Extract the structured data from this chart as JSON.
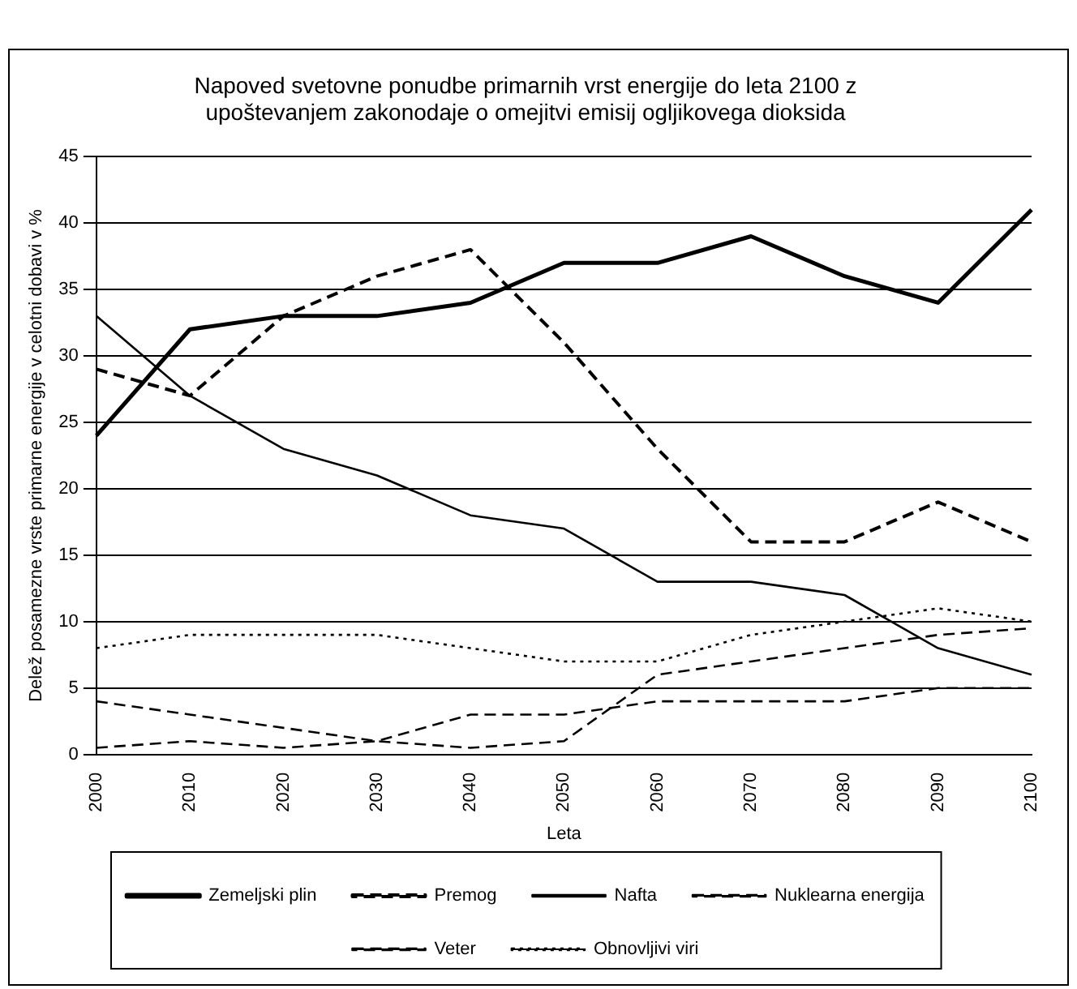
{
  "chart_data": {
    "type": "line",
    "title": "Napoved svetovne ponudbe primarnih vrst energije do leta 2100 z upoštevanjem zakonodaje o omejitvi emisij ogljikovega dioksida",
    "xlabel": "Leta",
    "ylabel": "Delež posamezne vrste primarne energije v celotni dobavi v %",
    "categories": [
      "2000",
      "2010",
      "2020",
      "2030",
      "2040",
      "2050",
      "2060",
      "2070",
      "2080",
      "2090",
      "2100"
    ],
    "series": [
      {
        "name": "Zemeljski plin",
        "color": "#000000",
        "line_style": "solid",
        "values": [
          24,
          32,
          33,
          33,
          34,
          37,
          37,
          39,
          36,
          34,
          41
        ]
      },
      {
        "name": "Premog",
        "color": "#000000",
        "line_style": "dashed",
        "values": [
          29,
          27,
          33,
          36,
          38,
          31,
          23,
          16,
          16,
          19,
          16
        ]
      },
      {
        "name": "Nafta",
        "color": "#000000",
        "line_style": "solid",
        "values": [
          33,
          27,
          23,
          21,
          18,
          17,
          13,
          13,
          12,
          8,
          6
        ]
      },
      {
        "name": "Nuklearna energija",
        "color": "#000000",
        "line_style": "dashed",
        "values": [
          4,
          3,
          2,
          1,
          0.5,
          1,
          6,
          7,
          8,
          9,
          9.5
        ]
      },
      {
        "name": "Veter",
        "color": "#000000",
        "line_style": "dashed",
        "values": [
          0.5,
          1,
          0.5,
          1,
          3,
          3,
          4,
          4,
          4,
          5,
          5
        ]
      },
      {
        "name": "Obnovljivi viri",
        "color": "#000000",
        "line_style": "dotted",
        "values": [
          8,
          9,
          9,
          9,
          8,
          7,
          7,
          9,
          10,
          11,
          10
        ]
      }
    ],
    "ylim": [
      0,
      45
    ],
    "yticks": [
      0,
      5,
      10,
      15,
      20,
      25,
      30,
      35,
      40,
      45
    ],
    "grid": "y",
    "legend": "bottom",
    "marker": "none"
  }
}
